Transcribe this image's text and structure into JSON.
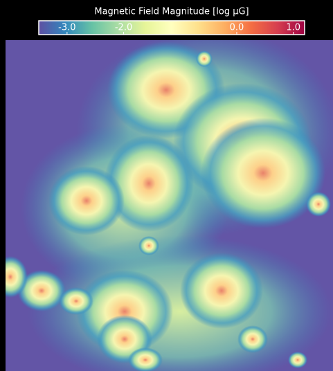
{
  "title": "Magnetic Field Magnitude [log μG]",
  "colorbar": {
    "clim": [
      -3.5,
      1.2
    ],
    "ticks": [
      {
        "value": -3,
        "label": "-3.0"
      },
      {
        "value": -2,
        "label": "-2.0"
      },
      {
        "value": 0,
        "label": "0.0"
      },
      {
        "value": 1,
        "label": "1.0"
      }
    ],
    "colormap": [
      "#5e4fa2",
      "#3288bd",
      "#66c2a5",
      "#abdda4",
      "#e6f598",
      "#ffffbf",
      "#fee08b",
      "#fdae61",
      "#f46d43",
      "#d53e4f",
      "#9e0142"
    ]
  }
}
